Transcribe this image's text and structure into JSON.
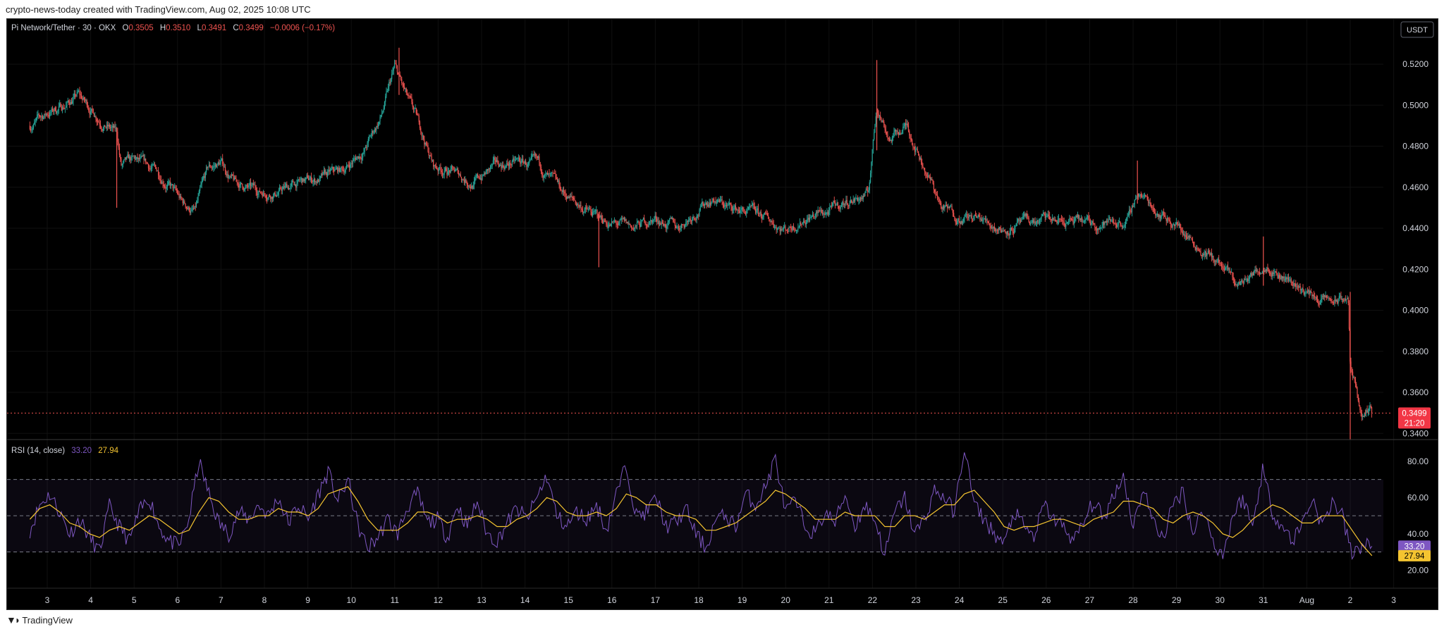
{
  "header": {
    "creator_line": "crypto-news-today created with TradingView.com, Aug 02, 2025 10:08 UTC"
  },
  "footer": {
    "brand": "TradingView"
  },
  "legend": {
    "symbol": "Pi Network/Tether · 30 · OKX",
    "o_label": "O",
    "o_value": "0.3505",
    "h_label": "H",
    "h_value": "0.3510",
    "l_label": "L",
    "l_value": "0.3491",
    "c_label": "C",
    "c_value": "0.3499",
    "change": "−0.0006 (−0.17%)"
  },
  "currency_button": "USDT",
  "price_tag": {
    "price": "0.3499",
    "countdown": "21:20"
  },
  "rsi_legend": {
    "label": "RSI (14, close)",
    "rsi": "33.20",
    "ma": "27.94"
  },
  "colors": {
    "up": "#26a69a",
    "down": "#ef5350",
    "rsi": "#7e57c2",
    "rsi_ma": "#f4c430",
    "tag": "#f23645"
  },
  "chart_data": [
    {
      "type": "candlestick",
      "title": "Pi Network/Tether · 30 · OKX",
      "x_ticks": [
        "3",
        "4",
        "5",
        "6",
        "7",
        "8",
        "9",
        "10",
        "11",
        "12",
        "13",
        "14",
        "15",
        "16",
        "17",
        "18",
        "19",
        "20",
        "21",
        "22",
        "23",
        "24",
        "25",
        "26",
        "27",
        "28",
        "29",
        "30",
        "31",
        "Aug",
        "2",
        "3"
      ],
      "y_ticks": [
        "0.3400",
        "0.3600",
        "0.3800",
        "0.4000",
        "0.4200",
        "0.4400",
        "0.4600",
        "0.4800",
        "0.5000",
        "0.5200"
      ],
      "ylim": [
        0.337,
        0.542
      ],
      "last_price": 0.3499,
      "close_path": [
        {
          "d": 2.6,
          "v": 0.49
        },
        {
          "d": 3.0,
          "v": 0.496
        },
        {
          "d": 3.4,
          "v": 0.5
        },
        {
          "d": 3.7,
          "v": 0.505
        },
        {
          "d": 4.0,
          "v": 0.498
        },
        {
          "d": 4.4,
          "v": 0.49
        },
        {
          "d": 4.6,
          "v": 0.486
        },
        {
          "d": 4.7,
          "v": 0.47
        },
        {
          "d": 5.0,
          "v": 0.472
        },
        {
          "d": 5.5,
          "v": 0.468
        },
        {
          "d": 5.8,
          "v": 0.462
        },
        {
          "d": 6.1,
          "v": 0.452
        },
        {
          "d": 6.4,
          "v": 0.448
        },
        {
          "d": 6.7,
          "v": 0.468
        },
        {
          "d": 7.0,
          "v": 0.472
        },
        {
          "d": 7.3,
          "v": 0.462
        },
        {
          "d": 7.8,
          "v": 0.458
        },
        {
          "d": 8.3,
          "v": 0.458
        },
        {
          "d": 8.8,
          "v": 0.462
        },
        {
          "d": 9.3,
          "v": 0.464
        },
        {
          "d": 9.8,
          "v": 0.468
        },
        {
          "d": 10.3,
          "v": 0.478
        },
        {
          "d": 10.7,
          "v": 0.495
        },
        {
          "d": 11.0,
          "v": 0.518
        },
        {
          "d": 11.3,
          "v": 0.502
        },
        {
          "d": 11.6,
          "v": 0.488
        },
        {
          "d": 11.9,
          "v": 0.47
        },
        {
          "d": 12.3,
          "v": 0.468
        },
        {
          "d": 12.8,
          "v": 0.462
        },
        {
          "d": 13.3,
          "v": 0.47
        },
        {
          "d": 13.8,
          "v": 0.472
        },
        {
          "d": 14.3,
          "v": 0.47
        },
        {
          "d": 14.8,
          "v": 0.458
        },
        {
          "d": 15.2,
          "v": 0.452
        },
        {
          "d": 15.6,
          "v": 0.446
        },
        {
          "d": 16.0,
          "v": 0.442
        },
        {
          "d": 16.5,
          "v": 0.44
        },
        {
          "d": 17.0,
          "v": 0.445
        },
        {
          "d": 17.5,
          "v": 0.44
        },
        {
          "d": 17.9,
          "v": 0.448
        },
        {
          "d": 18.3,
          "v": 0.455
        },
        {
          "d": 18.7,
          "v": 0.45
        },
        {
          "d": 19.1,
          "v": 0.448
        },
        {
          "d": 19.6,
          "v": 0.444
        },
        {
          "d": 20.0,
          "v": 0.44
        },
        {
          "d": 20.5,
          "v": 0.446
        },
        {
          "d": 21.0,
          "v": 0.448
        },
        {
          "d": 21.5,
          "v": 0.454
        },
        {
          "d": 21.9,
          "v": 0.456
        },
        {
          "d": 22.1,
          "v": 0.5
        },
        {
          "d": 22.4,
          "v": 0.484
        },
        {
          "d": 22.8,
          "v": 0.49
        },
        {
          "d": 23.2,
          "v": 0.47
        },
        {
          "d": 23.6,
          "v": 0.45
        },
        {
          "d": 24.0,
          "v": 0.446
        },
        {
          "d": 24.5,
          "v": 0.444
        },
        {
          "d": 25.0,
          "v": 0.44
        },
        {
          "d": 25.5,
          "v": 0.442
        },
        {
          "d": 26.0,
          "v": 0.444
        },
        {
          "d": 26.5,
          "v": 0.443
        },
        {
          "d": 27.0,
          "v": 0.442
        },
        {
          "d": 27.5,
          "v": 0.443
        },
        {
          "d": 27.9,
          "v": 0.444
        },
        {
          "d": 28.1,
          "v": 0.458
        },
        {
          "d": 28.5,
          "v": 0.45
        },
        {
          "d": 29.0,
          "v": 0.442
        },
        {
          "d": 29.5,
          "v": 0.432
        },
        {
          "d": 30.0,
          "v": 0.422
        },
        {
          "d": 30.4,
          "v": 0.412
        },
        {
          "d": 30.8,
          "v": 0.418
        },
        {
          "d": 31.1,
          "v": 0.424
        },
        {
          "d": 31.4,
          "v": 0.418
        },
        {
          "d": 31.8,
          "v": 0.412
        },
        {
          "d": 32.2,
          "v": 0.406
        },
        {
          "d": 32.6,
          "v": 0.404
        },
        {
          "d": 32.95,
          "v": 0.406
        },
        {
          "d": 33.0,
          "v": 0.372
        },
        {
          "d": 33.15,
          "v": 0.36
        },
        {
          "d": 33.3,
          "v": 0.348
        },
        {
          "d": 33.5,
          "v": 0.3499
        }
      ],
      "spikes": [
        {
          "d": 4.6,
          "high": 0.488,
          "low": 0.45
        },
        {
          "d": 11.1,
          "high": 0.528,
          "low": 0.505
        },
        {
          "d": 15.7,
          "high": 0.448,
          "low": 0.421
        },
        {
          "d": 22.1,
          "high": 0.522,
          "low": 0.478
        },
        {
          "d": 28.1,
          "high": 0.473,
          "low": 0.452
        },
        {
          "d": 31.0,
          "high": 0.436,
          "low": 0.412
        },
        {
          "d": 33.0,
          "high": 0.409,
          "low": 0.337
        }
      ]
    },
    {
      "type": "line",
      "title": "RSI (14, close)",
      "y_ticks": [
        "20.00",
        "40.00",
        "60.00",
        "80.00"
      ],
      "ylim": [
        10,
        92
      ],
      "bands": [
        30,
        50,
        70
      ],
      "series": [
        {
          "name": "RSI",
          "values": [
            42,
            56,
            62,
            52,
            40,
            48,
            38,
            30,
            55,
            44,
            36,
            52,
            60,
            44,
            36,
            33,
            48,
            80,
            62,
            46,
            40,
            52,
            48,
            56,
            50,
            60,
            46,
            56,
            48,
            62,
            74,
            58,
            70,
            44,
            32,
            38,
            48,
            40,
            55,
            62,
            46,
            48,
            38,
            56,
            44,
            58,
            40,
            36,
            46,
            54,
            48,
            60,
            72,
            50,
            44,
            52,
            48,
            56,
            42,
            62,
            78,
            50,
            52,
            60,
            44,
            46,
            54,
            40,
            32,
            48,
            50,
            44,
            62,
            56,
            66,
            82,
            52,
            58,
            44,
            40,
            52,
            46,
            62,
            44,
            56,
            48,
            28,
            52,
            60,
            40,
            48,
            64,
            60,
            52,
            88,
            56,
            48,
            40,
            34,
            52,
            44,
            38,
            56,
            48,
            44,
            36,
            46,
            58,
            48,
            62,
            72,
            44,
            66,
            46,
            38,
            56,
            64,
            40,
            54,
            36,
            28,
            50,
            60,
            44,
            76,
            52,
            44,
            36,
            46,
            60,
            44,
            58,
            50,
            28,
            34,
            33.2
          ]
        },
        {
          "name": "RSI-based MA",
          "values": [
            48,
            54,
            56,
            52,
            46,
            44,
            40,
            38,
            42,
            44,
            42,
            46,
            50,
            48,
            44,
            40,
            42,
            52,
            60,
            58,
            52,
            48,
            48,
            50,
            50,
            54,
            52,
            52,
            50,
            54,
            62,
            64,
            66,
            58,
            48,
            42,
            42,
            42,
            46,
            52,
            52,
            50,
            46,
            48,
            48,
            50,
            48,
            44,
            44,
            48,
            50,
            54,
            60,
            58,
            52,
            50,
            50,
            52,
            50,
            54,
            62,
            60,
            56,
            56,
            52,
            50,
            50,
            48,
            42,
            42,
            44,
            46,
            50,
            54,
            58,
            64,
            62,
            58,
            54,
            48,
            48,
            48,
            52,
            50,
            50,
            50,
            44,
            44,
            50,
            50,
            48,
            52,
            56,
            56,
            62,
            64,
            58,
            52,
            44,
            42,
            44,
            44,
            46,
            48,
            48,
            46,
            44,
            48,
            50,
            52,
            58,
            58,
            56,
            54,
            48,
            46,
            50,
            52,
            50,
            46,
            40,
            38,
            42,
            48,
            52,
            56,
            54,
            50,
            46,
            46,
            50,
            50,
            50,
            42,
            34,
            27.94
          ]
        }
      ]
    }
  ]
}
